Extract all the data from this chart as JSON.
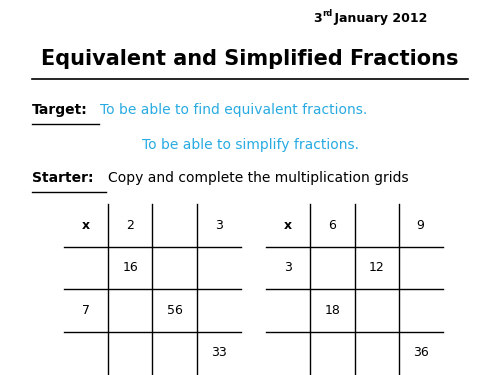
{
  "title": "Equivalent and Simplified Fractions",
  "date_main": "3",
  "date_sup": "rd",
  "date_rest": " January 2012",
  "target_label": "Target:",
  "target_line1": "To be able to find equivalent fractions.",
  "target_line2": "To be able to simplify fractions.",
  "starter_label": "Starter:",
  "starter_text": "Copy and complete the multiplication grids",
  "grid1_cells": [
    [
      "x",
      "2",
      "",
      "3"
    ],
    [
      "",
      "16",
      "",
      ""
    ],
    [
      "7",
      "",
      "56",
      ""
    ],
    [
      "",
      "",
      "",
      "33"
    ]
  ],
  "grid2_cells": [
    [
      "x",
      "6",
      "",
      "9"
    ],
    [
      "3",
      "",
      "12",
      ""
    ],
    [
      "",
      "18",
      "",
      ""
    ],
    [
      "",
      "",
      "",
      "36"
    ]
  ],
  "background_color": "#ffffff",
  "title_color": "#000000",
  "cyan_color": "#29abe2",
  "black_color": "#000000"
}
